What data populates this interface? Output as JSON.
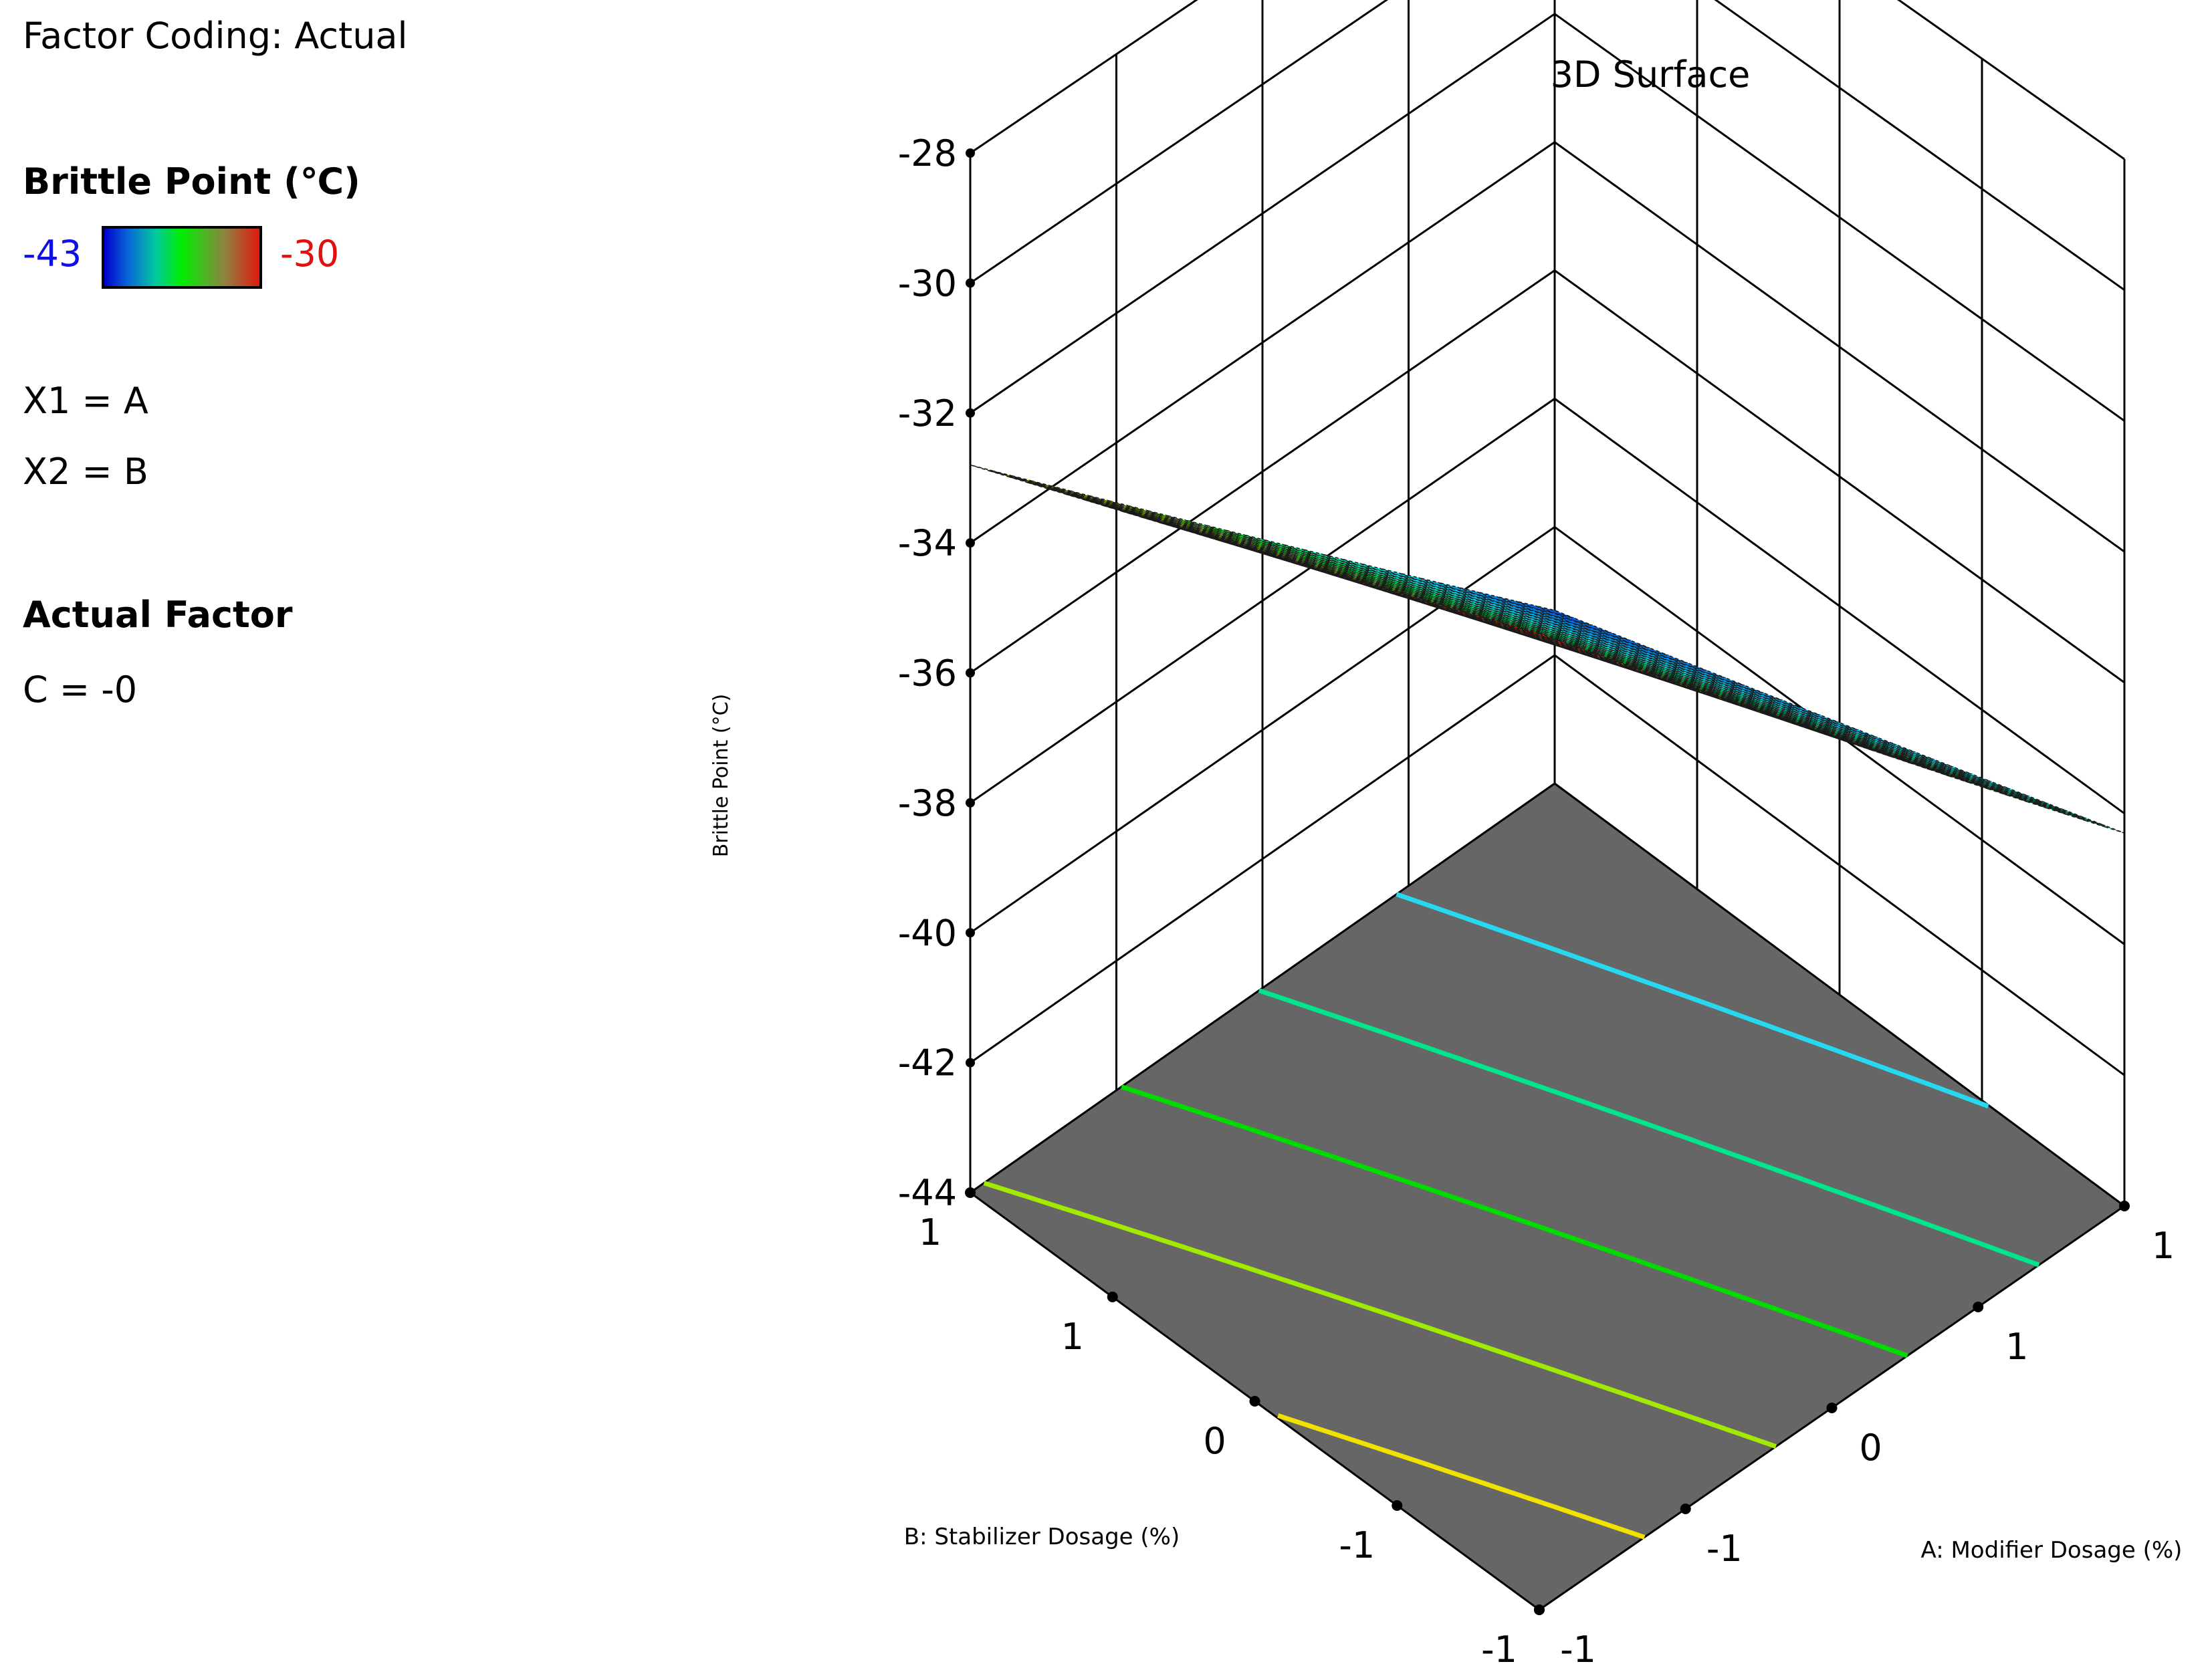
{
  "legend_panel": {
    "factor_coding": "Factor Coding: Actual",
    "response_label": "Brittle Point (℃)",
    "color_min": "-43",
    "color_max": "-30",
    "x1_line": "X1 = A",
    "x2_line": "X2 = B",
    "actual_factor_heading": "Actual Factor",
    "actual_factor_value": "C = -0"
  },
  "colors": {
    "floor": "#666666",
    "legend_min_text": "#1010e0",
    "legend_max_text": "#e01010"
  },
  "chart_data": {
    "type": "surface3d",
    "title": "3D Surface",
    "xlabel": "A: Modifier Dosage (%)",
    "ylabel": "B: Stabilizer Dosage (%)",
    "zlabel": "Brittle Point (°C)",
    "x_ticks": [
      "-1",
      "-1",
      "0",
      "1",
      "1"
    ],
    "y_ticks": [
      "-1",
      "-1",
      "0",
      "1",
      "1"
    ],
    "z_ticks": [
      "-28",
      "-30",
      "-32",
      "-34",
      "-36",
      "-38",
      "-40",
      "-42",
      "-44"
    ],
    "zlim": [
      -44,
      -28
    ],
    "color_range": [
      -43,
      -30
    ],
    "corner_values": {
      "A_low_B_low": -29.4,
      "A_high_B_low": -38.3,
      "A_low_B_high": -32.8,
      "A_high_B_high": -41.3
    },
    "contour_levels": [
      {
        "value": -31,
        "color": "#f2e200"
      },
      {
        "value": -33,
        "color": "#a2ea00"
      },
      {
        "value": -35,
        "color": "#00dc00"
      },
      {
        "value": -37,
        "color": "#00e68a"
      },
      {
        "value": -39,
        "color": "#28d8f0"
      }
    ],
    "grid": true
  }
}
